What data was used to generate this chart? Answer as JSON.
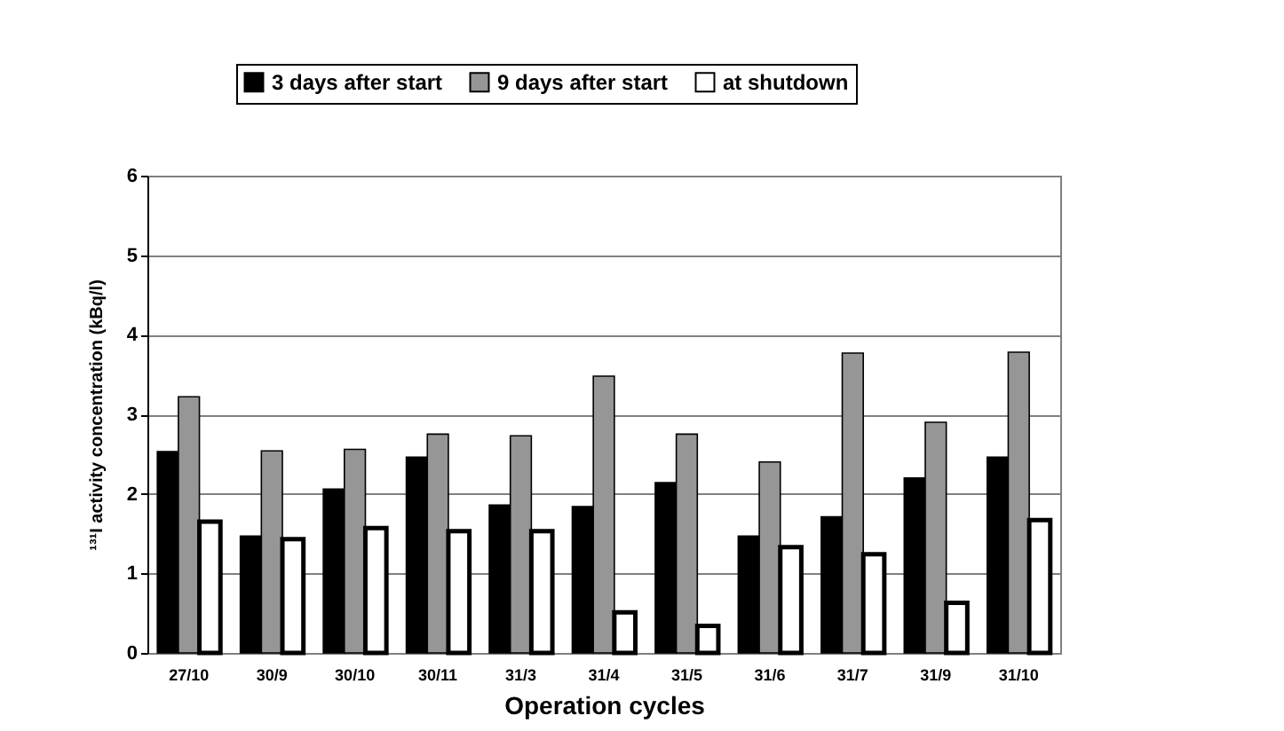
{
  "chart_data": {
    "type": "bar",
    "categories": [
      "27/10",
      "30/9",
      "30/10",
      "30/11",
      "31/3",
      "31/4",
      "31/5",
      "31/6",
      "31/7",
      "31/9",
      "31/10"
    ],
    "series": [
      {
        "name": "3 days after start",
        "color": "#000000",
        "values": [
          2.53,
          1.47,
          2.06,
          2.46,
          1.86,
          1.84,
          2.14,
          1.47,
          1.71,
          2.2,
          2.46
        ]
      },
      {
        "name": "9 days after start",
        "color": "#969696",
        "values": [
          3.22,
          2.54,
          2.56,
          2.75,
          2.73,
          3.48,
          2.75,
          2.4,
          3.77,
          2.9,
          3.78
        ]
      },
      {
        "name": "at shutdown",
        "color": "#ffffff",
        "values": [
          1.65,
          1.43,
          1.57,
          1.53,
          1.53,
          0.51,
          0.34,
          1.33,
          1.24,
          0.63,
          1.67
        ]
      }
    ],
    "xlabel": "Operation cycles",
    "ylabel": "¹³¹I activity concentration (kBq/l)",
    "ylim": [
      0,
      6
    ],
    "yticks": [
      0,
      1,
      2,
      3,
      4,
      5,
      6
    ],
    "grid": "y",
    "legend": "top"
  }
}
